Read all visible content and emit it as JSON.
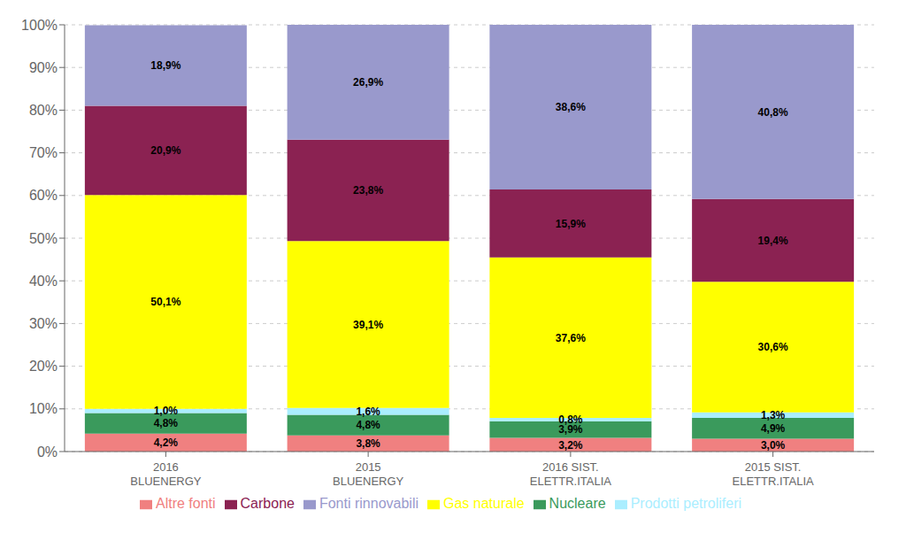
{
  "chart_data": {
    "type": "bar",
    "stacked": true,
    "grid": true,
    "legend": "bottom",
    "data_labels": true,
    "categories": [
      "2016\nBLUENERGY",
      "2015\nBLUENERGY",
      "2016 SIST.\nELETTR.ITALIA",
      "2015 SIST.\nELETTR.ITALIA"
    ],
    "series": [
      {
        "name": "Altre fonti",
        "color": "#F08080",
        "values": [
          4.2,
          3.8,
          3.2,
          3.0
        ],
        "value_labels": [
          "4,2%",
          "3,8%",
          "3,2%",
          "3,0%"
        ]
      },
      {
        "name": "Nucleare",
        "color": "#3A9A5C",
        "values": [
          4.8,
          4.8,
          3.9,
          4.9
        ],
        "value_labels": [
          "4,8%",
          "4,8%",
          "3,9%",
          "4,9%"
        ]
      },
      {
        "name": "Prodotti petroliferi",
        "color": "#AAEEFF",
        "values": [
          1.0,
          1.6,
          0.8,
          1.3
        ],
        "value_labels": [
          "1,0%",
          "1,6%",
          "0,8%",
          "1,3%"
        ]
      },
      {
        "name": "Gas naturale",
        "color": "#FFFF00",
        "values": [
          50.1,
          39.1,
          37.6,
          30.6
        ],
        "value_labels": [
          "50,1%",
          "39,1%",
          "37,6%",
          "30,6%"
        ]
      },
      {
        "name": "Carbone",
        "color": "#8B2252",
        "values": [
          20.9,
          23.8,
          15.9,
          19.4
        ],
        "value_labels": [
          "20,9%",
          "23,8%",
          "15,9%",
          "19,4%"
        ]
      },
      {
        "name": "Fonti rinnovabili",
        "color": "#9999CC",
        "values": [
          18.9,
          26.9,
          38.6,
          40.8
        ],
        "value_labels": [
          "18,9%",
          "26,9%",
          "38,6%",
          "40,8%"
        ]
      }
    ],
    "ylim": [
      0,
      100
    ],
    "yticks": [
      {
        "value": 0,
        "label": "0%"
      },
      {
        "value": 10,
        "label": "10%"
      },
      {
        "value": 20,
        "label": "20%"
      },
      {
        "value": 30,
        "label": "30%"
      },
      {
        "value": 40,
        "label": "40%"
      },
      {
        "value": 50,
        "label": "50%"
      },
      {
        "value": 60,
        "label": "60%"
      },
      {
        "value": 70,
        "label": "70%"
      },
      {
        "value": 80,
        "label": "80%"
      },
      {
        "value": 90,
        "label": "90%"
      },
      {
        "value": 100,
        "label": "100%"
      }
    ]
  }
}
